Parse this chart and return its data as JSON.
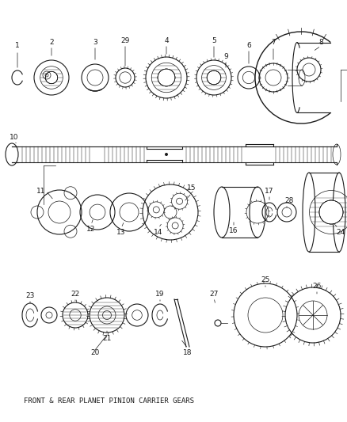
{
  "background_color": "#ffffff",
  "line_color": "#1a1a1a",
  "title_text": "FRONT & REAR PLANET PINION CARRIER GEARS",
  "title_fontsize": 6.5,
  "fig_width": 4.38,
  "fig_height": 5.33,
  "dpi": 100
}
